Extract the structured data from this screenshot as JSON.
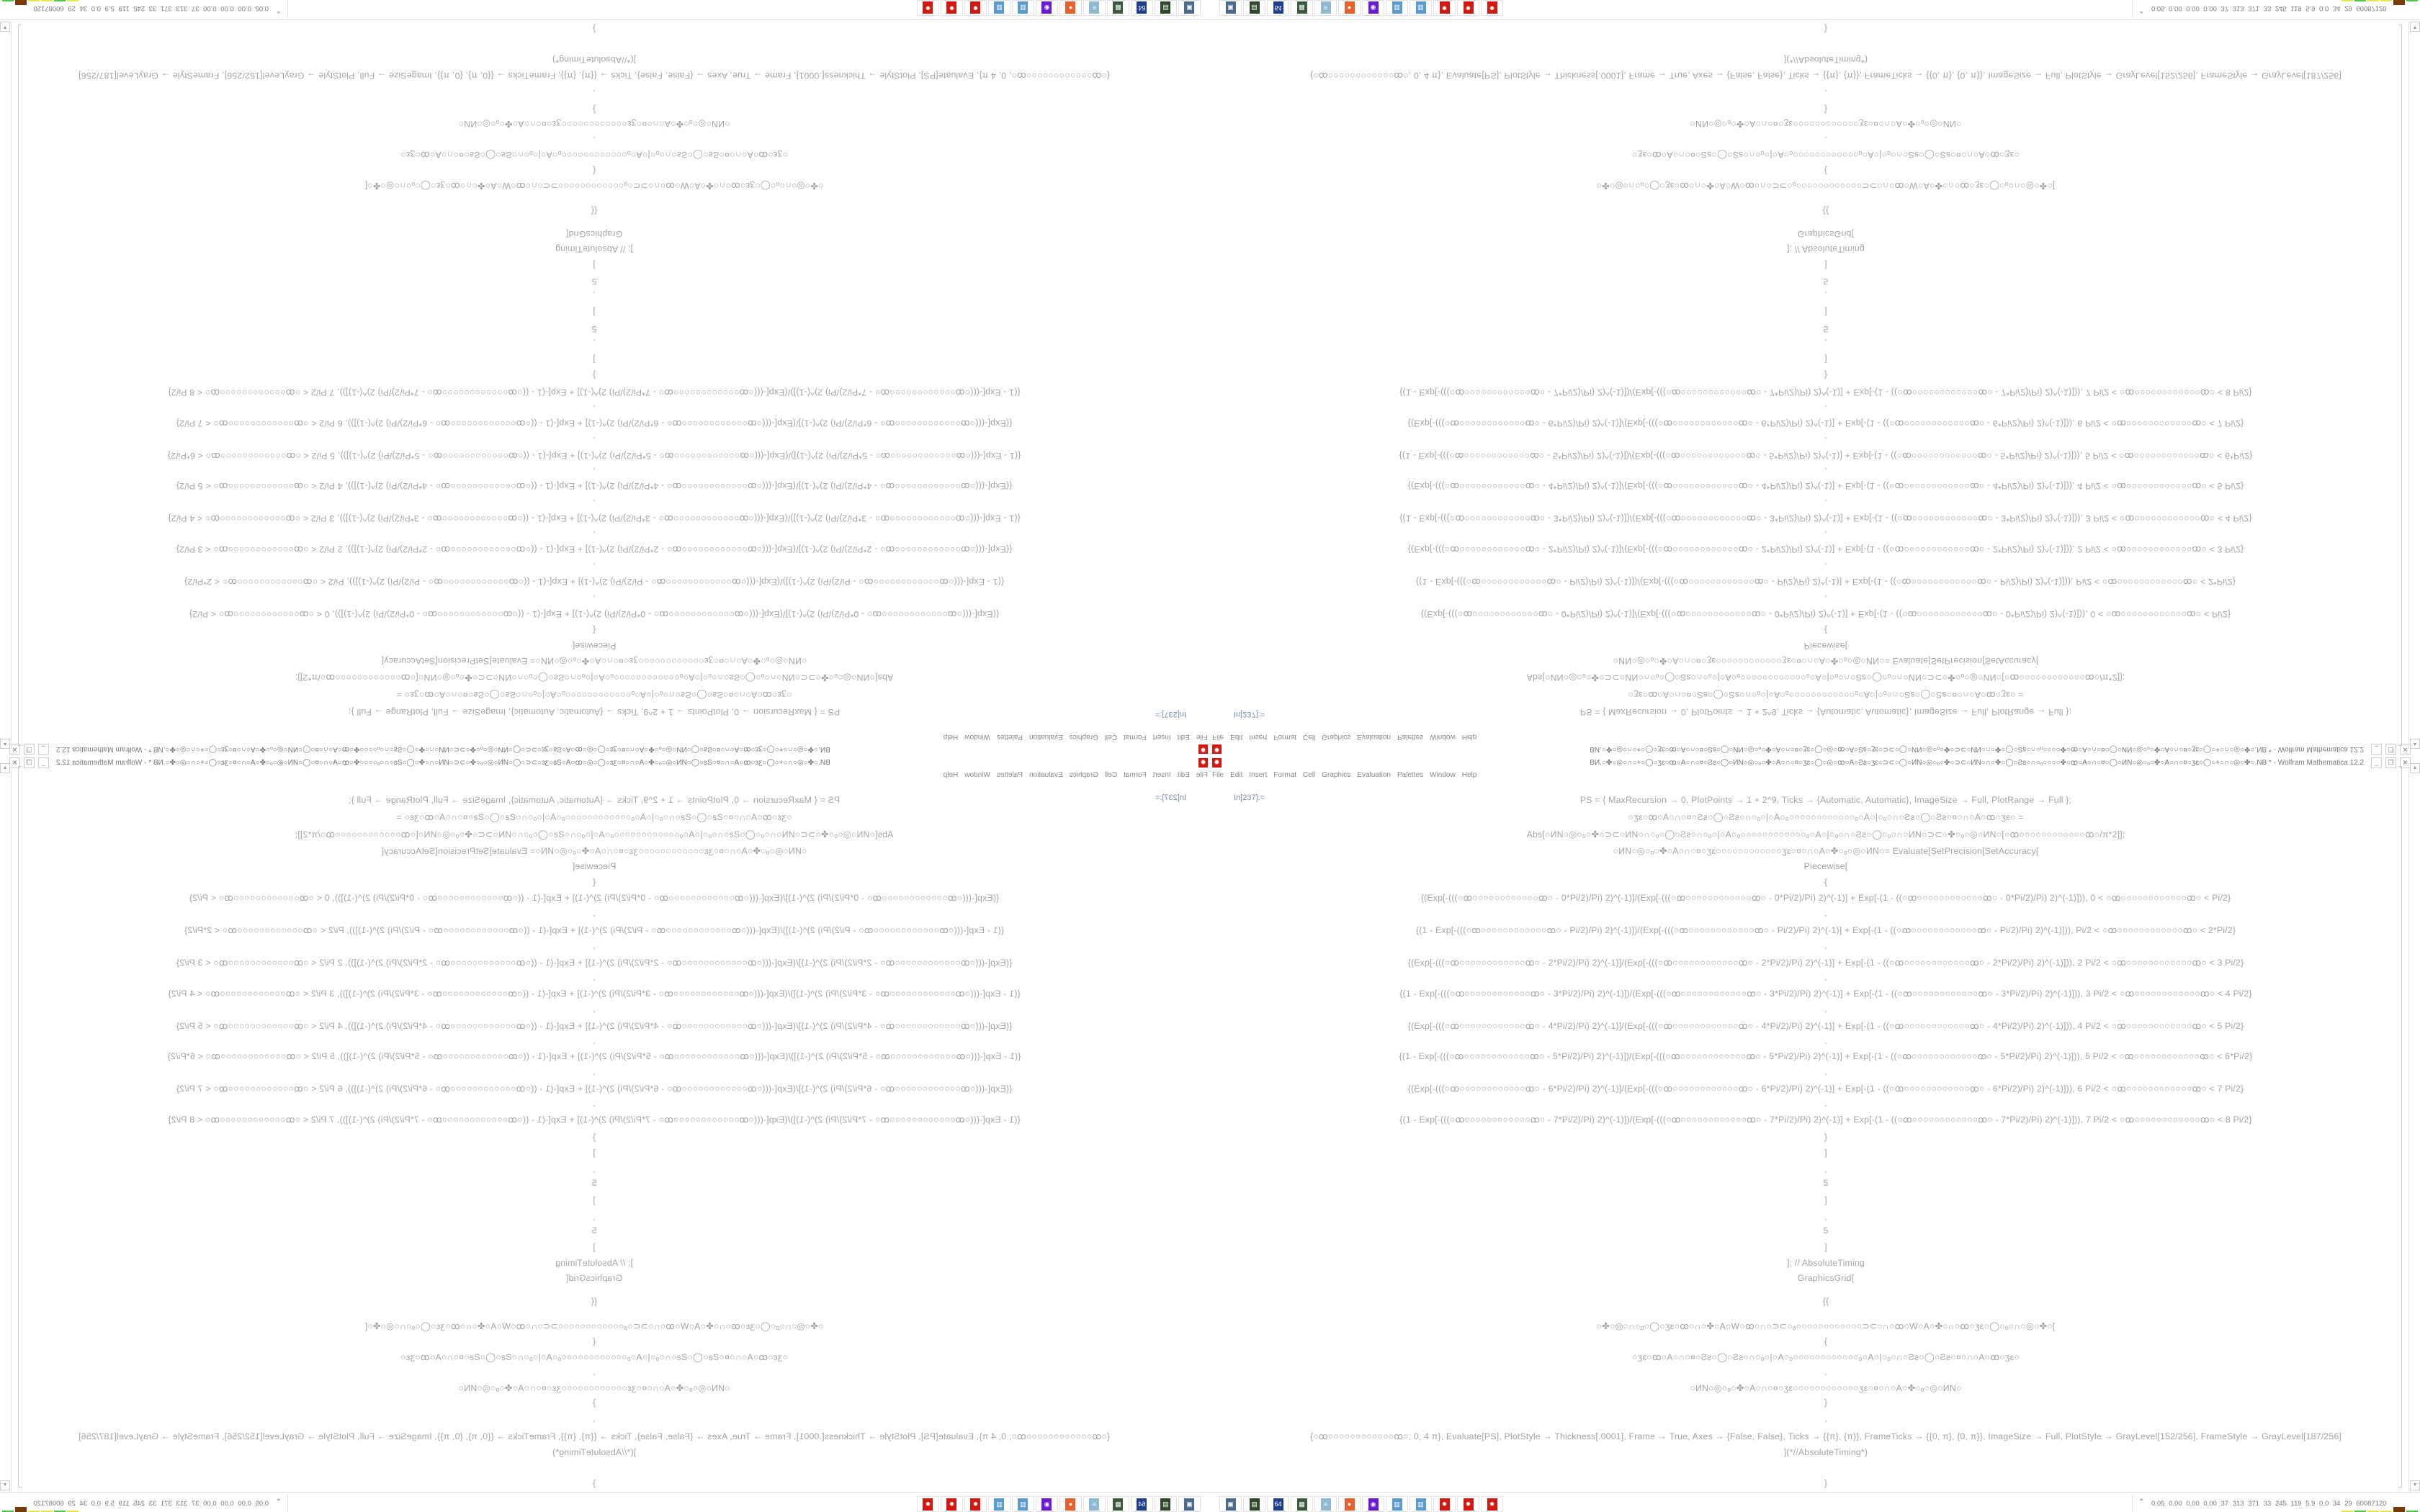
{
  "window": {
    "title": "BИ.○✤○◎○∩○+○◯○ʒɛ○ꝏ○A○∩○¤○Ƨƨ○◯○ИN○◎○ₒ○✤○A○∩○¤○ʒɛ○◯○◎○ꝏ○A○Ƨƨ○ʒɛ○⊃⊂○◯○ИN○◎○ₒ○✤○⊃⊂○ИN○∩○✤○◯○Ƨƨ○∩○ₒ○○○○✤○ꝏ○A○∩○¤○◯○ИN○◎○ₒ○✤○A○∩○¤○ʒɛ○◯○+○∩○◎○✤○.NB * - Wolfram Mathematica 12.2",
    "minimize": "_",
    "restore": "❐",
    "close": "✕"
  },
  "menu": [
    "File",
    "Edit",
    "Insert",
    "Format",
    "Cell",
    "Graphics",
    "Evaluation",
    "Palettes",
    "Window",
    "Help"
  ],
  "notebook": {
    "input_label": "In[237]:=",
    "lines": [
      "PS = {   MaxRecursion → 0, PlotPoints → 1 + 2^9, Ticks → {Automatic, Automatic}, ImageSize → Full, PlotRange → Full   };",
      "○ʒɛ○ꝏ○A○∩○¤○Ƨƨ○◯○Ƨƨ○∩○ₒ○|○A○ₒ○○○○○○○○○○○○ₒ○A○|○ₒ○∩○Ƨƨ○◯○Ƨƨ○¤○∩○A○ꝏ○ʒɛ○   =",
      "Abs[○ИN○◎○ₒ○✤○⊃⊂○ИN○∩○ₒ○◯○Ƨƨ○∩○ₒ○|○A○ₒ○○○○○○○○○○○○ₒ○A○|○ₒ○∩○Ƨƨ○◯○ₒ○∩○ИN○⊃⊂○✤○ₒ○◎○ИN○[○ꝏ○○○○○○○○○○○○ꝏ○/π*2]];",
      "○ИN○◎○ₒ○✤○A○∩○¤○ʒɛ○○○○○○○○○○○○ʒɛ○¤○∩○A○✤○ₒ○◎○ИN○= Evaluate[SetPrecision[SetAccuracy[",
      "Piecewise[",
      "{",
      "{(Exp[-(((○ꝏ○○○○○○○○○○○○ꝏ○ - 0*Pi/2)/Pi) 2)^(-1)]/(Exp[-(((○ꝏ○○○○○○○○○○○○ꝏ○ - 0*Pi/2)/Pi) 2)^(-1)] + Exp[-(1 - ((○ꝏ○○○○○○○○○○○○ꝏ○ - 0*Pi/2)/Pi) 2)^(-1)])), 0 < ○ꝏ○○○○○○○○○○○○ꝏ○ < Pi/2}",
      ",",
      "{(1 - Exp[-(((○ꝏ○○○○○○○○○○○○ꝏ○ - Pi/2)/Pi) 2)^(-1)])/(Exp[-(((○ꝏ○○○○○○○○○○○○ꝏ○ - Pi/2)/Pi) 2)^(-1)] + Exp[-(1 - ((○ꝏ○○○○○○○○○○○○ꝏ○ - Pi/2)/Pi) 2)^(-1)])), Pi/2 < ○ꝏ○○○○○○○○○○○○ꝏ○ < 2*Pi/2}",
      ",",
      "{(Exp[-(((○ꝏ○○○○○○○○○○○○ꝏ○ - 2*Pi/2)/Pi) 2)^(-1)]/(Exp[-(((○ꝏ○○○○○○○○○○○○ꝏ○ - 2*Pi/2)/Pi) 2)^(-1)] + Exp[-(1 - ((○ꝏ○○○○○○○○○○○○ꝏ○ - 2*Pi/2)/Pi) 2)^(-1)])), 2 Pi/2 < ○ꝏ○○○○○○○○○○○○ꝏ○ < 3 Pi/2}",
      ",",
      "{(1 - Exp[-(((○ꝏ○○○○○○○○○○○○ꝏ○ - 3*Pi/2)/Pi) 2)^(-1)])/(Exp[-(((○ꝏ○○○○○○○○○○○○ꝏ○ - 3*Pi/2)/Pi) 2)^(-1)] + Exp[-(1 - ((○ꝏ○○○○○○○○○○○○ꝏ○ - 3*Pi/2)/Pi) 2)^(-1)])), 3 Pi/2 < ○ꝏ○○○○○○○○○○○○ꝏ○ < 4 Pi/2}",
      ",",
      "{(Exp[-(((○ꝏ○○○○○○○○○○○○ꝏ○ - 4*Pi/2)/Pi) 2)^(-1)]/(Exp[-(((○ꝏ○○○○○○○○○○○○ꝏ○ - 4*Pi/2)/Pi) 2)^(-1)] + Exp[-(1 - ((○ꝏ○○○○○○○○○○○○ꝏ○ - 4*Pi/2)/Pi) 2)^(-1)])), 4 Pi/2 < ○ꝏ○○○○○○○○○○○○ꝏ○ < 5 Pi/2}",
      ",",
      "{(1 - Exp[-(((○ꝏ○○○○○○○○○○○○ꝏ○ - 5*Pi/2)/Pi) 2)^(-1)])/(Exp[-(((○ꝏ○○○○○○○○○○○○ꝏ○ - 5*Pi/2)/Pi) 2)^(-1)] + Exp[-(1 - ((○ꝏ○○○○○○○○○○○○ꝏ○ - 5*Pi/2)/Pi) 2)^(-1)])), 5 Pi/2 < ○ꝏ○○○○○○○○○○○○ꝏ○ < 6*Pi/2}",
      ",",
      "{(Exp[-(((○ꝏ○○○○○○○○○○○○ꝏ○ - 6*Pi/2)/Pi) 2)^(-1)]/(Exp[-(((○ꝏ○○○○○○○○○○○○ꝏ○ - 6*Pi/2)/Pi) 2)^(-1)] + Exp[-(1 - ((○ꝏ○○○○○○○○○○○○ꝏ○ - 6*Pi/2)/Pi) 2)^(-1)])), 6 Pi/2 < ○ꝏ○○○○○○○○○○○○ꝏ○ < 7 Pi/2}",
      ",",
      "{(1 - Exp[-(((○ꝏ○○○○○○○○○○○○ꝏ○ - 7*Pi/2)/Pi) 2)^(-1)])/(Exp[-(((○ꝏ○○○○○○○○○○○○ꝏ○ - 7*Pi/2)/Pi) 2)^(-1)] + Exp[-(1 - ((○ꝏ○○○○○○○○○○○○ꝏ○ - 7*Pi/2)/Pi) 2)^(-1)])), 7 Pi/2 < ○ꝏ○○○○○○○○○○○○ꝏ○ < 8 Pi/2}",
      "}",
      "]",
      ",",
      "5",
      "]",
      ",",
      "5",
      "]",
      "]; // AbsoluteTiming",
      "GraphicsGrid[",
      "{{",
      "○✤○◎○∩○ₒ○◯○ʒɛ○ꝏ○∩○✤○A○W○ꝏ○∩○⊃⊂○ₒ○○○○○○○○○○○○⊃⊂○∩○ꝏ○W○A○✤○∩○ꝏ○ʒɛ○◯○ₒ○∩○◎○✤○[",
      "{",
      "○ʒɛ○ꝏ○A○∩○¤○Ƨƨ○◯○Ƨƨ○∩○ₒ○|○A○ₒ○○○○○○○○○○○○ₒ○A○|○ₒ○∩○Ƨƨ○◯○Ƨƨ○¤○∩○A○ꝏ○ʒɛ○",
      ",",
      "○ИN○◎○ₒ○✤○A○∩○¤○ʒɛ○○○○○○○○○○○○ʒɛ○¤○∩○A○✤○ₒ○◎○ИN○",
      "}",
      ",",
      "{○ꝏ○○○○○○○○○○○○ꝏ○, 0, 4 π}, Evaluate[PS], PlotStyle → Thickness[.0001], Frame → True, Axes → {False, False}, Ticks → {{π}, {π}}, FrameTicks → {{0, π}, {0, π}}, ImageSize → Full, PlotStyle → GrayLevel[152/256], FrameStyle → GrayLevel[187/256]",
      "](*//AbsoluteTiming*)",
      "}"
    ]
  },
  "taskbar": {
    "icons": [
      {
        "name": "remote-desktop-icon",
        "color": "#4a6a8c",
        "glyph": "▣"
      },
      {
        "name": "green-device-icon",
        "color": "#2f4a2a",
        "glyph": "▤"
      },
      {
        "name": "floppy-64-icon",
        "color": "#1f3f8f",
        "glyph": "64"
      },
      {
        "name": "system-monitor-icon",
        "color": "#3c5a3c",
        "glyph": "▦"
      },
      {
        "name": "notepad-icon",
        "color": "#8fb9d0",
        "glyph": "≡"
      },
      {
        "name": "firefox-icon",
        "color": "#e8602c",
        "glyph": "●"
      },
      {
        "name": "purple-app-icon",
        "color": "#6a1bd1",
        "glyph": "◉"
      },
      {
        "name": "calculator-icon",
        "color": "#5a9ccf",
        "glyph": "▥"
      },
      {
        "name": "calculator-icon",
        "color": "#5a9ccf",
        "glyph": "▥"
      },
      {
        "name": "mathematica-icon",
        "color": "#d2180f",
        "glyph": "✹"
      },
      {
        "name": "mathematica-icon",
        "color": "#d2180f",
        "glyph": "✹"
      },
      {
        "name": "mathematica-icon",
        "color": "#d2180f",
        "glyph": "✹"
      }
    ]
  },
  "tray": {
    "chevron": "⌃",
    "stats": "0.05 0.00 0.00 0.00  37  313  371  33  245  119  5.9  0.0  34  29  60087120",
    "meter_colors": [
      "#e8e84a",
      "#4ac94a",
      "#e8e84a",
      "#e8e84a",
      "#7a3a08",
      "#4ac94a"
    ]
  },
  "scrollbar": {
    "up": "▲",
    "down": "▼"
  }
}
